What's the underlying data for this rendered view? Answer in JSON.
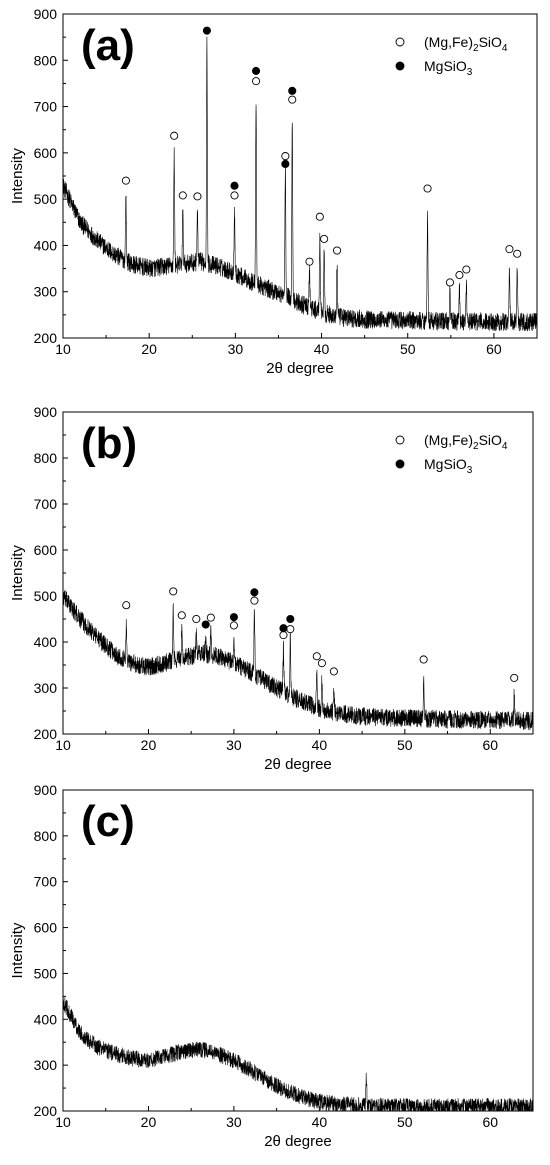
{
  "chart_data": [
    {
      "panel": "(a)",
      "type": "line",
      "xlabel": "2θ degree",
      "ylabel": "Intensity",
      "xlim": [
        10,
        65
      ],
      "ylim": [
        200,
        900
      ],
      "xticks": [
        10,
        20,
        30,
        40,
        50,
        60
      ],
      "yticks": [
        200,
        300,
        400,
        500,
        600,
        700,
        800,
        900
      ],
      "grid": false,
      "legend_position": "top-right",
      "legend": [
        {
          "marker": "open-circle",
          "text_parts": [
            "(Mg,Fe)",
            "2",
            "SiO",
            "4"
          ]
        },
        {
          "marker": "filled-circle",
          "text_parts": [
            "MgSiO",
            "3"
          ]
        }
      ],
      "baseline": [
        [
          10,
          530
        ],
        [
          12,
          450
        ],
        [
          14,
          410
        ],
        [
          16,
          380
        ],
        [
          18,
          360
        ],
        [
          20,
          350
        ],
        [
          22,
          355
        ],
        [
          24,
          360
        ],
        [
          26,
          365
        ],
        [
          28,
          355
        ],
        [
          30,
          340
        ],
        [
          32,
          320
        ],
        [
          34,
          305
        ],
        [
          36,
          290
        ],
        [
          38,
          270
        ],
        [
          40,
          255
        ],
        [
          42,
          245
        ],
        [
          45,
          240
        ],
        [
          50,
          238
        ],
        [
          55,
          236
        ],
        [
          60,
          235
        ],
        [
          65,
          235
        ]
      ],
      "baseline_noise": 20,
      "peaks": [
        {
          "x": 17.3,
          "y": 505
        },
        {
          "x": 22.9,
          "y": 600
        },
        {
          "x": 23.9,
          "y": 470
        },
        {
          "x": 25.6,
          "y": 470
        },
        {
          "x": 26.7,
          "y": 835
        },
        {
          "x": 29.9,
          "y": 475
        },
        {
          "x": 32.4,
          "y": 720
        },
        {
          "x": 35.8,
          "y": 560
        },
        {
          "x": 36.6,
          "y": 680
        },
        {
          "x": 38.6,
          "y": 350
        },
        {
          "x": 39.8,
          "y": 420
        },
        {
          "x": 40.3,
          "y": 385
        },
        {
          "x": 41.8,
          "y": 360
        },
        {
          "x": 52.3,
          "y": 480
        },
        {
          "x": 54.9,
          "y": 300
        },
        {
          "x": 56.0,
          "y": 310
        },
        {
          "x": 56.8,
          "y": 320
        },
        {
          "x": 61.8,
          "y": 360
        },
        {
          "x": 62.7,
          "y": 355
        }
      ],
      "open_markers": [
        [
          17.3,
          540
        ],
        [
          22.9,
          637
        ],
        [
          23.9,
          508
        ],
        [
          25.6,
          506
        ],
        [
          29.9,
          508
        ],
        [
          32.4,
          755
        ],
        [
          35.8,
          593
        ],
        [
          36.6,
          715
        ],
        [
          38.6,
          365
        ],
        [
          39.8,
          462
        ],
        [
          40.3,
          414
        ],
        [
          41.8,
          389
        ],
        [
          52.3,
          523
        ],
        [
          54.9,
          320
        ],
        [
          56.0,
          336
        ],
        [
          56.8,
          348
        ],
        [
          61.8,
          392
        ],
        [
          62.7,
          382
        ]
      ],
      "filled_markers": [
        [
          26.7,
          864
        ],
        [
          29.9,
          529
        ],
        [
          32.4,
          777
        ],
        [
          35.8,
          576
        ],
        [
          36.6,
          734
        ]
      ]
    },
    {
      "panel": "(b)",
      "type": "line",
      "xlabel": "2θ degree",
      "ylabel": "Intensity",
      "xlim": [
        10,
        65
      ],
      "ylim": [
        200,
        900
      ],
      "xticks": [
        10,
        20,
        30,
        40,
        50,
        60
      ],
      "yticks": [
        200,
        300,
        400,
        500,
        600,
        700,
        800,
        900
      ],
      "grid": false,
      "legend_position": "top-right",
      "legend": [
        {
          "marker": "open-circle",
          "text_parts": [
            "(Mg,Fe)",
            "2",
            "SiO",
            "4"
          ]
        },
        {
          "marker": "filled-circle",
          "text_parts": [
            "MgSiO",
            "3"
          ]
        }
      ],
      "baseline": [
        [
          10,
          500
        ],
        [
          12,
          450
        ],
        [
          14,
          410
        ],
        [
          16,
          375
        ],
        [
          18,
          355
        ],
        [
          20,
          345
        ],
        [
          22,
          355
        ],
        [
          24,
          365
        ],
        [
          26,
          375
        ],
        [
          28,
          370
        ],
        [
          30,
          355
        ],
        [
          32,
          335
        ],
        [
          34,
          310
        ],
        [
          36,
          290
        ],
        [
          38,
          270
        ],
        [
          40,
          255
        ],
        [
          42,
          245
        ],
        [
          45,
          238
        ],
        [
          50,
          234
        ],
        [
          55,
          232
        ],
        [
          60,
          230
        ],
        [
          65,
          228
        ]
      ],
      "baseline_noise": 20,
      "peaks": [
        {
          "x": 17.4,
          "y": 440
        },
        {
          "x": 22.9,
          "y": 470
        },
        {
          "x": 23.9,
          "y": 420
        },
        {
          "x": 25.6,
          "y": 415
        },
        {
          "x": 26.7,
          "y": 410
        },
        {
          "x": 27.3,
          "y": 420
        },
        {
          "x": 30.0,
          "y": 410
        },
        {
          "x": 32.4,
          "y": 465
        },
        {
          "x": 35.8,
          "y": 390
        },
        {
          "x": 36.6,
          "y": 410
        },
        {
          "x": 39.7,
          "y": 330
        },
        {
          "x": 40.3,
          "y": 315
        },
        {
          "x": 41.7,
          "y": 300
        },
        {
          "x": 52.2,
          "y": 320
        },
        {
          "x": 62.8,
          "y": 285
        }
      ],
      "open_markers": [
        [
          17.4,
          480
        ],
        [
          22.9,
          510
        ],
        [
          23.9,
          458
        ],
        [
          25.6,
          450
        ],
        [
          27.3,
          453
        ],
        [
          30.0,
          436
        ],
        [
          32.4,
          490
        ],
        [
          35.8,
          415
        ],
        [
          36.6,
          428
        ],
        [
          39.7,
          369
        ],
        [
          40.3,
          354
        ],
        [
          41.7,
          336
        ],
        [
          52.2,
          362
        ],
        [
          62.8,
          322
        ]
      ],
      "filled_markers": [
        [
          26.7,
          438
        ],
        [
          30.0,
          454
        ],
        [
          32.4,
          508
        ],
        [
          35.8,
          430
        ],
        [
          36.6,
          450
        ]
      ]
    },
    {
      "panel": "(c)",
      "type": "line",
      "xlabel": "2θ degree",
      "ylabel": "Intensity",
      "xlim": [
        10,
        65
      ],
      "ylim": [
        200,
        900
      ],
      "xticks": [
        10,
        20,
        30,
        40,
        50,
        60
      ],
      "yticks": [
        200,
        300,
        400,
        500,
        600,
        700,
        800,
        900
      ],
      "grid": false,
      "legend_position": "none",
      "legend": [],
      "baseline": [
        [
          10,
          440
        ],
        [
          12,
          370
        ],
        [
          14,
          340
        ],
        [
          16,
          325
        ],
        [
          18,
          315
        ],
        [
          20,
          310
        ],
        [
          22,
          320
        ],
        [
          24,
          330
        ],
        [
          26,
          335
        ],
        [
          28,
          325
        ],
        [
          30,
          310
        ],
        [
          32,
          290
        ],
        [
          34,
          265
        ],
        [
          36,
          245
        ],
        [
          38,
          230
        ],
        [
          40,
          220
        ],
        [
          42,
          215
        ],
        [
          45,
          212
        ],
        [
          50,
          210
        ],
        [
          55,
          210
        ],
        [
          60,
          210
        ],
        [
          65,
          210
        ]
      ],
      "baseline_noise": 18,
      "peaks": [
        {
          "x": 45.5,
          "y": 275
        }
      ],
      "open_markers": [],
      "filled_markers": []
    }
  ]
}
